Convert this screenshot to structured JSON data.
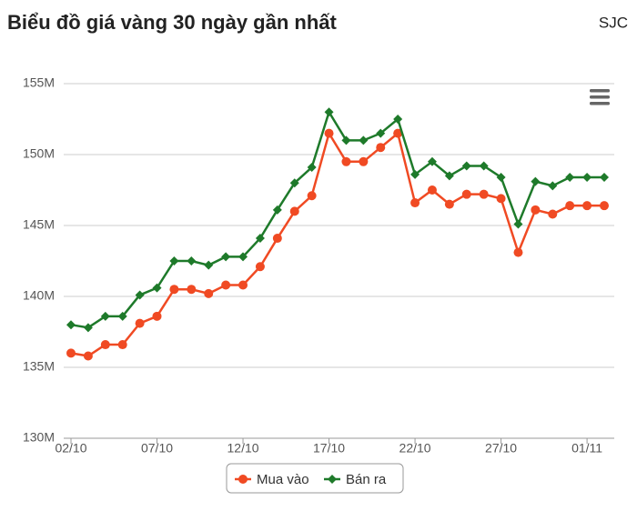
{
  "chart_data": {
    "type": "line",
    "title": "Biểu đồ giá vàng 30 ngày gần nhất",
    "subtitle": "SJC",
    "categories": [
      "02/10",
      null,
      null,
      null,
      null,
      "07/10",
      null,
      null,
      null,
      null,
      "12/10",
      null,
      null,
      null,
      null,
      "17/10",
      null,
      null,
      null,
      null,
      "22/10",
      null,
      null,
      null,
      null,
      "27/10",
      null,
      null,
      null,
      null,
      "01/11",
      null
    ],
    "series": [
      {
        "name": "Mua vào",
        "color": "#f04a23",
        "marker": "circle",
        "values": [
          136000000,
          135800000,
          136600000,
          136600000,
          138100000,
          138600000,
          140500000,
          140500000,
          140200000,
          140800000,
          140800000,
          142100000,
          144100000,
          146000000,
          147100000,
          151500000,
          149500000,
          149500000,
          150500000,
          151500000,
          146600000,
          147500000,
          146500000,
          147200000,
          147200000,
          146900000,
          143100000,
          146100000,
          145800000,
          146400000,
          146400000,
          146400000
        ]
      },
      {
        "name": "Bán ra",
        "color": "#1e7a2a",
        "marker": "diamond",
        "values": [
          138000000,
          137800000,
          138600000,
          138600000,
          140100000,
          140600000,
          142500000,
          142500000,
          142200000,
          142800000,
          142800000,
          144100000,
          146100000,
          148000000,
          149100000,
          153000000,
          151000000,
          151000000,
          151500000,
          152500000,
          148600000,
          149500000,
          148500000,
          149200000,
          149200000,
          148400000,
          145100000,
          148100000,
          147800000,
          148400000,
          148400000,
          148400000
        ]
      }
    ],
    "ylim": [
      130000000,
      155000000
    ],
    "yticks": [
      {
        "value": 130000000,
        "label": "130M"
      },
      {
        "value": 135000000,
        "label": "135M"
      },
      {
        "value": 140000000,
        "label": "140M"
      },
      {
        "value": 145000000,
        "label": "145M"
      },
      {
        "value": 150000000,
        "label": "150M"
      },
      {
        "value": 155000000,
        "label": "155M"
      }
    ],
    "grid": true,
    "legend": "bottom"
  }
}
